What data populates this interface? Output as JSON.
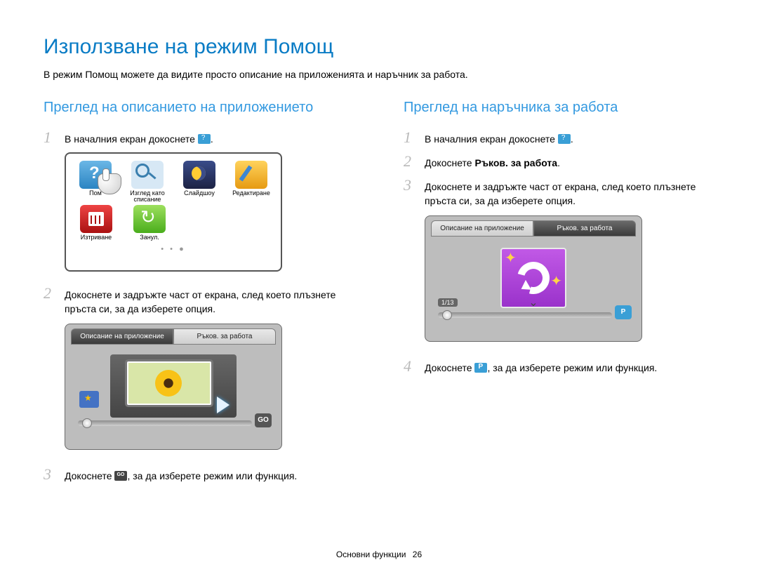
{
  "title": "Използване на режим Помощ",
  "subtitle": "В режим Помощ можете да видите просто описание на приложенията и наръчник за работа.",
  "colors": {
    "title_blue": "#0a7cc5",
    "section_blue": "#3399e0",
    "step_num_gray": "#b9b9b9",
    "body_text": "#000000",
    "device_bg": "#bdbdbd"
  },
  "left": {
    "heading": "Преглед на описанието на приложението",
    "step1_text": "В началния екран докоснете ",
    "step2_text": "Докоснете и задръжте част от екрана, след което плъзнете пръста си, за да изберете опция.",
    "step3_pre": "Докоснете ",
    "step3_post": ", за да изберете режим или функция.",
    "grid": {
      "items": [
        {
          "label": "Пом"
        },
        {
          "label": "Изглед като списание"
        },
        {
          "label": "Слайдшоу"
        },
        {
          "label": "Редактиране"
        },
        {
          "label": "Изтриване"
        },
        {
          "label": "Занул."
        }
      ]
    },
    "tabs": {
      "left": "Описание на приложение",
      "right": "Ръков. за работа",
      "go_label": "GO"
    }
  },
  "right": {
    "heading": "Преглед на наръчника за работа",
    "step1_text": "В началния екран докоснете ",
    "step2_pre": "Докоснете ",
    "step2_bold": "Ръков. за работа",
    "step2_post": ".",
    "step3_text": "Докоснете и задръжте част от екрана, след което плъзнете пръста си, за да изберете опция.",
    "tabs": {
      "left": "Описание на приложение",
      "right": "Ръков. за работа",
      "page_counter": "1/13"
    },
    "step4_pre": "Докоснете ",
    "step4_post": ", за да изберете режим или функция."
  },
  "footer": {
    "label": "Основни функции",
    "page": "26"
  }
}
